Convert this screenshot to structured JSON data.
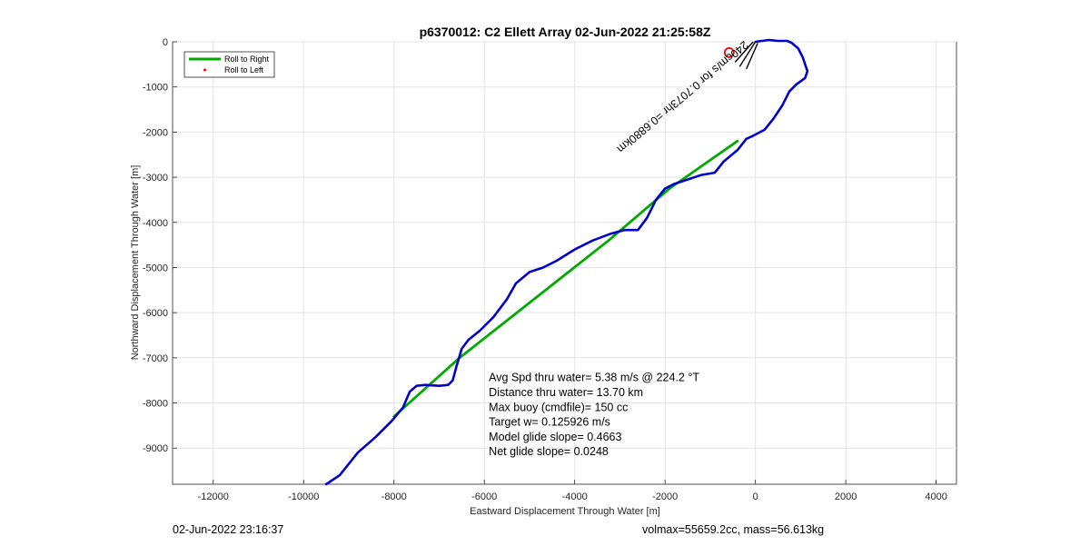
{
  "chart_data": {
    "type": "line",
    "title": "p6370012: C2 Ellett Array 02-Jun-2022 21:25:58Z",
    "xlabel": "Eastward Displacement Through Water [m]",
    "ylabel": "Northward Displacement Through Water [m]",
    "xlim": [
      -12900,
      4450
    ],
    "ylim": [
      -9800,
      0
    ],
    "xticks": [
      -12000,
      -10000,
      -8000,
      -6000,
      -4000,
      -2000,
      0,
      2000,
      4000
    ],
    "yticks": [
      0,
      -1000,
      -2000,
      -3000,
      -4000,
      -5000,
      -6000,
      -7000,
      -8000,
      -9000
    ],
    "grid": true,
    "legend": {
      "placement": "top-left",
      "entries": [
        {
          "label": "Roll to Right",
          "color": "#00aa00",
          "style": "line"
        },
        {
          "label": "Roll to Left",
          "color": "#ff0000",
          "style": "dot"
        }
      ]
    },
    "series": [
      {
        "color": "#0000cc",
        "x": [
          -9500,
          -9200,
          -8800,
          -8400,
          -8050,
          -7800,
          -7650,
          -7500,
          -7300,
          -7000,
          -6800,
          -6700,
          -6620,
          -6500,
          -6350,
          -6100,
          -5800,
          -5500,
          -5300,
          -5000,
          -4700,
          -4400,
          -4000,
          -3600,
          -3200,
          -2900,
          -2600,
          -2400,
          -2200,
          -2000,
          -1800,
          -1500,
          -1200,
          -900,
          -700,
          -400,
          -200,
          -50,
          200,
          400,
          600,
          750,
          900,
          1100,
          1150,
          1050,
          950,
          800,
          700,
          500,
          300,
          0
        ],
        "y": [
          -9800,
          -9600,
          -9100,
          -8750,
          -8400,
          -8100,
          -7750,
          -7620,
          -7600,
          -7620,
          -7600,
          -7500,
          -7200,
          -6800,
          -6600,
          -6400,
          -6100,
          -5700,
          -5350,
          -5100,
          -5000,
          -4850,
          -4600,
          -4400,
          -4250,
          -4170,
          -4170,
          -3900,
          -3500,
          -3250,
          -3150,
          -3050,
          -2950,
          -2900,
          -2650,
          -2400,
          -2150,
          -2080,
          -1950,
          -1700,
          -1400,
          -1100,
          -950,
          -800,
          -650,
          -350,
          -150,
          -20,
          20,
          20,
          40,
          0
        ]
      },
      {
        "name": "Roll to Right",
        "color": "#00aa00",
        "x": [
          -8000,
          -6550
        ],
        "y": [
          -8300,
          -7000
        ]
      },
      {
        "name": "Roll to Right",
        "color": "#00aa00",
        "x": [
          -6550,
          -3250
        ],
        "y": [
          -7000,
          -4400
        ]
      },
      {
        "name": "Roll to Right",
        "color": "#00aa00",
        "x": [
          -3250,
          -1900
        ],
        "y": [
          -4400,
          -3250
        ]
      },
      {
        "name": "Roll to Right",
        "color": "#00aa00",
        "x": [
          -1900,
          -400
        ],
        "y": [
          -3250,
          -2200
        ]
      }
    ],
    "markers": {
      "start_circle": {
        "x": -580,
        "y": -240,
        "color": "#ff0000"
      },
      "arrows": [
        {
          "x0": -350,
          "y0": -550,
          "x1": 0,
          "y1": 0,
          "color": "#000000"
        },
        {
          "x0": -450,
          "y0": -450,
          "x1": -50,
          "y1": 0,
          "color": "#000000"
        },
        {
          "x0": -200,
          "y0": -600,
          "x1": 50,
          "y1": -30,
          "color": "#000000"
        }
      ]
    },
    "annotations": {
      "rotated_text": "240cm/s for 0.7073hr =0.6880km",
      "rotated_anchor": {
        "x": -250,
        "y": 30
      },
      "stats_anchor": {
        "x": -5900,
        "y": -7520
      },
      "stats_lines": [
        "Avg Spd thru water=  5.38 m/s @ 224.2 °T",
        "Distance thru water= 13.70 km",
        "Max buoy (cmdfile)= 150 cc",
        "Target w= 0.125926 m/s",
        "Model glide slope= 0.4663",
        "Net glide slope= 0.0248"
      ]
    }
  },
  "footer": {
    "left": "02-Jun-2022 23:16:37",
    "right": "volmax=55659.2cc, mass=56.613kg"
  }
}
